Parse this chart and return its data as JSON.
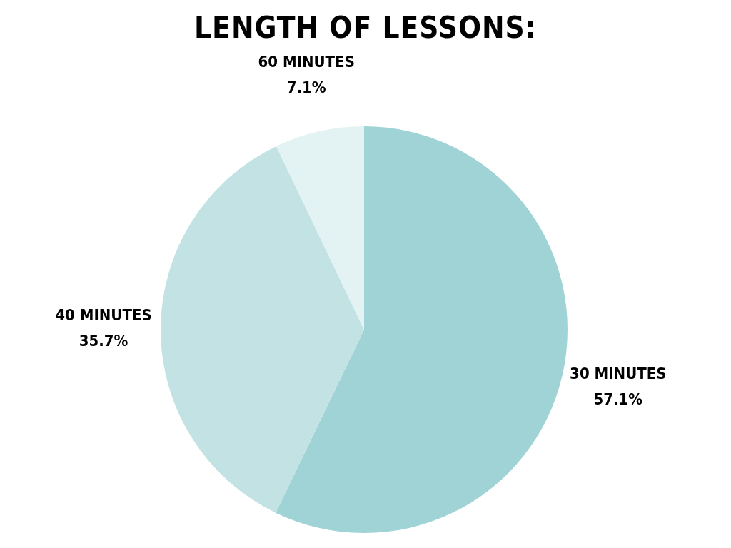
{
  "chart_data": {
    "type": "pie",
    "title": "LENGTH OF LESSONS:",
    "categories": [
      "30 MINUTES",
      "40 MINUTES",
      "60 MINUTES"
    ],
    "values": [
      57.1,
      35.7,
      7.1
    ],
    "value_labels": [
      "57.1%",
      "35.7%",
      "7.1%"
    ],
    "colors": [
      "#9fd3d6",
      "#c2e2e4",
      "#e3f2f3"
    ]
  }
}
